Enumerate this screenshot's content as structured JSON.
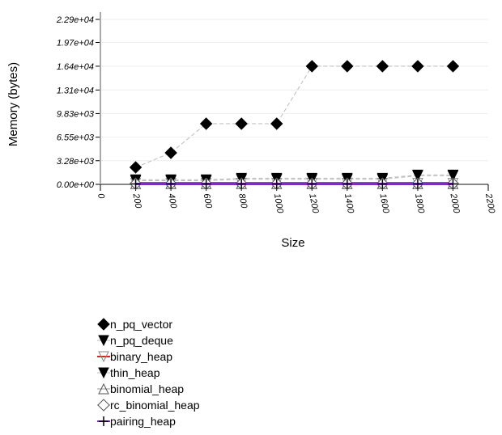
{
  "chart_data": {
    "type": "line",
    "xlabel": "Size",
    "ylabel": "Memory (bytes)",
    "xlim": [
      0,
      2200
    ],
    "ylim": [
      0,
      22900
    ],
    "xticks": [
      "0",
      "200",
      "400",
      "600",
      "800",
      "1000",
      "1200",
      "1400",
      "1600",
      "1800",
      "2000",
      "2200"
    ],
    "yticks": [
      "0.00e+00",
      "3.28e+03",
      "6.55e+03",
      "9.83e+03",
      "1.31e+04",
      "1.64e+04",
      "1.97e+04",
      "2.29e+04"
    ],
    "grid": true,
    "legend_placement": "bottom-left",
    "x": [
      200,
      400,
      600,
      800,
      1000,
      1200,
      1400,
      1600,
      1800,
      2000
    ],
    "series": [
      {
        "name": "n_pq_vector",
        "marker": "diamond",
        "color": "#000000",
        "line": "#bbbbbb",
        "values": [
          2360,
          4380,
          8420,
          8420,
          8420,
          16400,
          16400,
          16400,
          16400,
          16400
        ]
      },
      {
        "name": "n_pq_deque",
        "marker": "triangle-down",
        "color": "#000000",
        "line": "#bbbbbb",
        "values": [
          650,
          650,
          650,
          850,
          850,
          850,
          850,
          850,
          1300,
          1300
        ]
      },
      {
        "name": "binary_heap",
        "marker": "triangle-down-open",
        "color": "#dd2222",
        "line": "#dd2222",
        "values": [
          150,
          150,
          150,
          150,
          150,
          150,
          150,
          150,
          150,
          150
        ]
      },
      {
        "name": "thin_heap",
        "marker": "triangle-down",
        "color": "#000000",
        "line": "#bbbbbb",
        "values": [
          500,
          500,
          500,
          700,
          700,
          700,
          700,
          700,
          1200,
          1200
        ]
      },
      {
        "name": "binomial_heap",
        "marker": "triangle-up-open",
        "color": "#555555",
        "line": "#999999",
        "values": [
          80,
          80,
          80,
          80,
          80,
          80,
          80,
          80,
          80,
          80
        ]
      },
      {
        "name": "rc_binomial_heap",
        "marker": "diamond-open",
        "color": "#555555",
        "line": "#999999",
        "values": [
          100,
          100,
          100,
          100,
          100,
          100,
          100,
          100,
          100,
          100
        ]
      },
      {
        "name": "pairing_heap",
        "marker": "plus",
        "color": "#000000",
        "line": "#7b2fbf",
        "values": [
          50,
          50,
          50,
          50,
          50,
          50,
          50,
          50,
          50,
          50
        ]
      }
    ]
  }
}
